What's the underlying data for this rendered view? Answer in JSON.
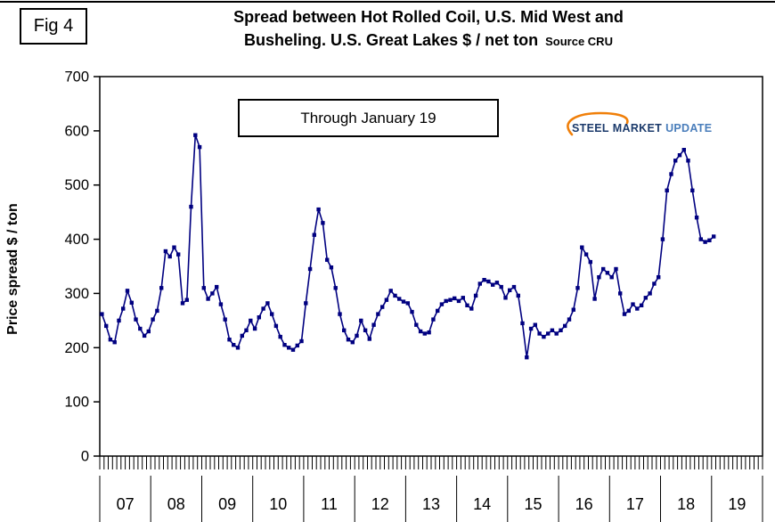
{
  "fig_label": "Fig 4",
  "header": {
    "title_line1": "Spread between Hot Rolled Coil, U.S. Mid West and",
    "title_line2": "Busheling. U.S. Great Lakes  $ / net ton",
    "source": "Source CRU"
  },
  "annotation_box": "Through January 19",
  "y_axis_label": "Price spread $ / ton",
  "logo": {
    "word1": "STEEL",
    "word2": "MARKET",
    "word3": "UPDATE",
    "word1_color": "#1B3A6B",
    "word2_color": "#1B3A6B",
    "word3_color": "#4A7EBB",
    "swoosh_color": "#F07F09"
  },
  "chart_data": {
    "type": "line",
    "title": "Spread between Hot Rolled Coil, U.S. Mid West and Busheling. U.S. Great Lakes $ / net ton",
    "ylabel": "Price spread $ / ton",
    "ylim": [
      0,
      700
    ],
    "yticks": [
      0,
      100,
      200,
      300,
      400,
      500,
      600,
      700
    ],
    "grid": false,
    "legend": false,
    "line_color": "#000080",
    "marker": "square",
    "x_unit": "month",
    "x_start": "2007-01",
    "x_end": "2019-01",
    "year_labels": [
      "07",
      "08",
      "09",
      "10",
      "11",
      "12",
      "13",
      "14",
      "15",
      "16",
      "17",
      "18",
      "19"
    ],
    "values": [
      262,
      240,
      215,
      210,
      250,
      272,
      305,
      283,
      252,
      235,
      222,
      230,
      252,
      268,
      310,
      378,
      368,
      385,
      372,
      282,
      288,
      460,
      592,
      570,
      310,
      290,
      300,
      312,
      280,
      252,
      215,
      205,
      200,
      222,
      232,
      250,
      235,
      256,
      272,
      282,
      262,
      240,
      220,
      205,
      200,
      196,
      204,
      212,
      282,
      345,
      408,
      455,
      430,
      362,
      348,
      310,
      262,
      232,
      215,
      210,
      222,
      250,
      232,
      216,
      242,
      262,
      275,
      288,
      305,
      296,
      290,
      285,
      282,
      266,
      242,
      230,
      226,
      228,
      252,
      268,
      280,
      286,
      288,
      291,
      286,
      292,
      278,
      272,
      296,
      318,
      325,
      322,
      316,
      320,
      312,
      292,
      306,
      312,
      296,
      245,
      182,
      235,
      242,
      226,
      220,
      226,
      232,
      226,
      232,
      240,
      252,
      270,
      310,
      385,
      372,
      358,
      290,
      330,
      345,
      338,
      330,
      345,
      300,
      262,
      268,
      280,
      272,
      278,
      292,
      300,
      318,
      330,
      400,
      490,
      520,
      545,
      555,
      565,
      545,
      490,
      440,
      400,
      395,
      398,
      405
    ]
  }
}
